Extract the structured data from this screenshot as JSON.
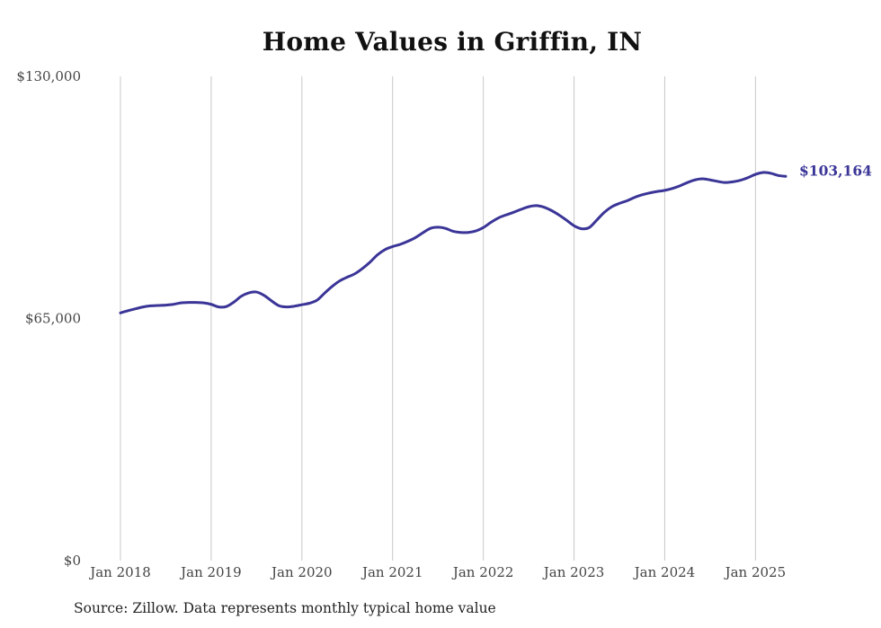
{
  "chart_data": {
    "type": "line",
    "title": "Home Values in Griffin, IN",
    "xlabel": "",
    "ylabel": "",
    "x_range": [
      "2018-01",
      "2025-05"
    ],
    "ylim": [
      0,
      130000
    ],
    "y_ticks": [
      {
        "value": 0,
        "label": "$0"
      },
      {
        "value": 65000,
        "label": "$65,000"
      },
      {
        "value": 130000,
        "label": "$130,000"
      }
    ],
    "x_ticks": [
      {
        "value": "2018-01",
        "label": "Jan 2018"
      },
      {
        "value": "2019-01",
        "label": "Jan 2019"
      },
      {
        "value": "2020-01",
        "label": "Jan 2020"
      },
      {
        "value": "2021-01",
        "label": "Jan 2021"
      },
      {
        "value": "2022-01",
        "label": "Jan 2022"
      },
      {
        "value": "2023-01",
        "label": "Jan 2023"
      },
      {
        "value": "2024-01",
        "label": "Jan 2024"
      },
      {
        "value": "2025-01",
        "label": "Jan 2025"
      }
    ],
    "grid": {
      "vertical": true,
      "horizontal": false
    },
    "line_color": "#3a3597",
    "end_label": "$103,164",
    "series": [
      {
        "x": [
          "2018-01",
          "2018-02",
          "2018-03",
          "2018-04",
          "2018-05",
          "2018-06",
          "2018-07",
          "2018-08",
          "2018-09",
          "2018-10",
          "2018-11",
          "2018-12",
          "2019-01",
          "2019-02",
          "2019-03",
          "2019-04",
          "2019-05",
          "2019-06",
          "2019-07",
          "2019-08",
          "2019-09",
          "2019-10",
          "2019-11",
          "2019-12",
          "2020-01",
          "2020-02",
          "2020-03",
          "2020-04",
          "2020-05",
          "2020-06",
          "2020-07",
          "2020-08",
          "2020-09",
          "2020-10",
          "2020-11",
          "2020-12",
          "2021-01",
          "2021-02",
          "2021-03",
          "2021-04",
          "2021-05",
          "2021-06",
          "2021-07",
          "2021-08",
          "2021-09",
          "2021-10",
          "2021-11",
          "2021-12",
          "2022-01",
          "2022-02",
          "2022-03",
          "2022-04",
          "2022-05",
          "2022-06",
          "2022-07",
          "2022-08",
          "2022-09",
          "2022-10",
          "2022-11",
          "2022-12",
          "2023-01",
          "2023-02",
          "2023-03",
          "2023-04",
          "2023-05",
          "2023-06",
          "2023-07",
          "2023-08",
          "2023-09",
          "2023-10",
          "2023-11",
          "2023-12",
          "2024-01",
          "2024-02",
          "2024-03",
          "2024-04",
          "2024-05",
          "2024-06",
          "2024-07",
          "2024-08",
          "2024-09",
          "2024-10",
          "2024-11",
          "2024-12",
          "2025-01",
          "2025-02",
          "2025-03",
          "2025-04",
          "2025-05"
        ],
        "values": [
          66500,
          67100,
          67600,
          68100,
          68400,
          68500,
          68600,
          68800,
          69200,
          69300,
          69300,
          69200,
          68800,
          68100,
          68200,
          69400,
          71000,
          71900,
          72100,
          71200,
          69700,
          68400,
          68100,
          68300,
          68700,
          69100,
          69900,
          71800,
          73600,
          75100,
          76100,
          77000,
          78400,
          80100,
          82100,
          83500,
          84300,
          84900,
          85700,
          86700,
          88000,
          89200,
          89500,
          89200,
          88400,
          88100,
          88100,
          88500,
          89400,
          90800,
          92000,
          92800,
          93500,
          94300,
          95000,
          95300,
          94900,
          94000,
          92800,
          91400,
          89900,
          89100,
          89400,
          91400,
          93500,
          95000,
          95900,
          96600,
          97500,
          98200,
          98700,
          99100,
          99400,
          99900,
          100600,
          101500,
          102200,
          102500,
          102200,
          101800,
          101500,
          101700,
          102100,
          102800,
          103700,
          104200,
          104000,
          103400,
          103164
        ]
      }
    ]
  },
  "footer": {
    "source": "Source: Zillow. Data represents monthly typical home value"
  }
}
